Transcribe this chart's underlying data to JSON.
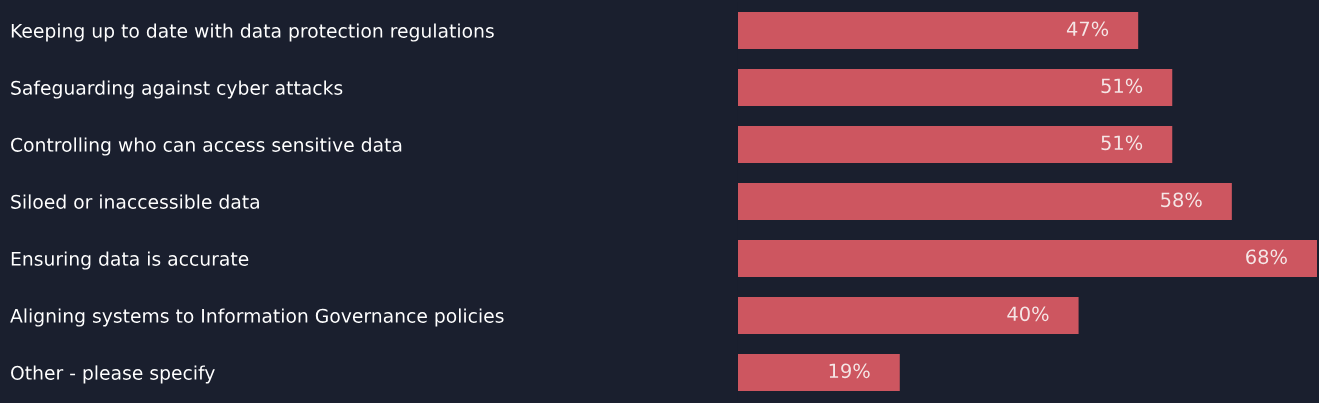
{
  "chart_data": {
    "type": "bar",
    "orientation": "horizontal",
    "grid": false,
    "legend": false,
    "tick_labels": "y",
    "categories": [
      "Keeping up to date with data protection regulations",
      "Safeguarding against cyber attacks",
      "Controlling who can access sensitive data",
      "Siloed or inaccessible data",
      "Ensuring data is accurate",
      "Aligning systems to Information Governance policies",
      "Other - please specify"
    ],
    "values": [
      47,
      51,
      51,
      58,
      68,
      40,
      19
    ],
    "value_labels": [
      "47%",
      "51%",
      "51%",
      "58%",
      "68%",
      "40%",
      "19%"
    ],
    "color": "#cd5660"
  }
}
